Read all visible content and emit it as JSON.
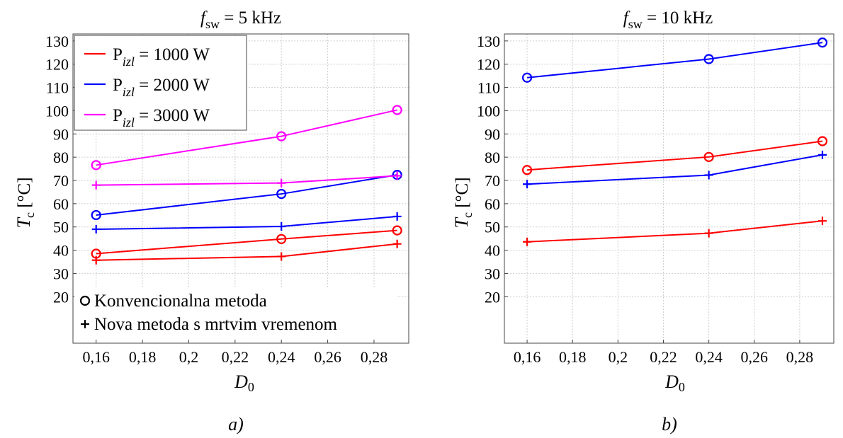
{
  "chart_data": [
    {
      "type": "line",
      "panel_label": "a)",
      "title_main": "f",
      "title_sub": "sw",
      "title_rest": " = 5 kHz",
      "xlabel_main": "D",
      "xlabel_sub": "0",
      "ylabel_main": "T",
      "ylabel_sub": "c",
      "ylabel_rest": " [°C]",
      "xlim": [
        0.15,
        0.295
      ],
      "ylim": [
        0,
        133
      ],
      "xticks": [
        0.16,
        0.18,
        0.2,
        0.22,
        0.24,
        0.26,
        0.28
      ],
      "xtick_labels": [
        "0,16",
        "0,18",
        "0,2",
        "0,22",
        "0,24",
        "0,26",
        "0,28"
      ],
      "yticks": [
        20,
        30,
        40,
        50,
        60,
        70,
        80,
        90,
        100,
        110,
        120,
        130
      ],
      "ytick_labels": [
        "20",
        "30",
        "40",
        "50",
        "60",
        "70",
        "80",
        "90",
        "100",
        "110",
        "120",
        "130"
      ],
      "grid": true,
      "legend_position": "top-left",
      "legend": [
        {
          "main": "P",
          "sub": "izl",
          "rest": " = 1000 W",
          "color": "#ff0000"
        },
        {
          "main": "P",
          "sub": "izl",
          "rest": " = 2000 W",
          "color": "#0000ff"
        },
        {
          "main": "P",
          "sub": "izl",
          "rest": " = 3000 W",
          "color": "#ff00ff"
        }
      ],
      "marker_legend_position": "bottom-left",
      "marker_legend": [
        {
          "marker": "circle",
          "label": "Konvencionalna metoda"
        },
        {
          "marker": "plus",
          "label": "Nova metoda s mrtvim vremenom"
        }
      ],
      "series": [
        {
          "color": "#ff0000",
          "marker": "circle",
          "x": [
            0.16,
            0.24,
            0.29
          ],
          "y": [
            38.5,
            44.8,
            48.5
          ]
        },
        {
          "color": "#ff0000",
          "marker": "plus",
          "x": [
            0.16,
            0.24,
            0.29
          ],
          "y": [
            35.7,
            37.3,
            42.7
          ]
        },
        {
          "color": "#0000ff",
          "marker": "circle",
          "x": [
            0.16,
            0.24,
            0.29
          ],
          "y": [
            55.1,
            64.2,
            72.4
          ]
        },
        {
          "color": "#0000ff",
          "marker": "plus",
          "x": [
            0.16,
            0.24,
            0.29
          ],
          "y": [
            49.0,
            50.2,
            54.5
          ]
        },
        {
          "color": "#ff00ff",
          "marker": "circle",
          "x": [
            0.16,
            0.24,
            0.29
          ],
          "y": [
            76.6,
            89.0,
            100.3
          ]
        },
        {
          "color": "#ff00ff",
          "marker": "plus",
          "x": [
            0.16,
            0.24,
            0.29
          ],
          "y": [
            68.0,
            68.9,
            72.0
          ]
        }
      ]
    },
    {
      "type": "line",
      "panel_label": "b)",
      "title_main": "f",
      "title_sub": "sw",
      "title_rest": " = 10 kHz",
      "xlabel_main": "D",
      "xlabel_sub": "0",
      "ylabel_main": "T",
      "ylabel_sub": "c",
      "ylabel_rest": " [°C]",
      "xlim": [
        0.15,
        0.295
      ],
      "ylim": [
        0,
        133
      ],
      "xticks": [
        0.16,
        0.18,
        0.2,
        0.22,
        0.24,
        0.26,
        0.28
      ],
      "xtick_labels": [
        "0,16",
        "0,18",
        "0,2",
        "0,22",
        "0,24",
        "0,26",
        "0,28"
      ],
      "yticks": [
        20,
        30,
        40,
        50,
        60,
        70,
        80,
        90,
        100,
        110,
        120,
        130
      ],
      "ytick_labels": [
        "20",
        "30",
        "40",
        "50",
        "60",
        "70",
        "80",
        "90",
        "100",
        "110",
        "120",
        "130"
      ],
      "grid": true,
      "series": [
        {
          "color": "#0000ff",
          "marker": "circle",
          "x": [
            0.16,
            0.24,
            0.29
          ],
          "y": [
            114.2,
            122.2,
            129.3
          ]
        },
        {
          "color": "#ff0000",
          "marker": "circle",
          "x": [
            0.16,
            0.24,
            0.29
          ],
          "y": [
            74.5,
            80.1,
            86.9
          ]
        },
        {
          "color": "#0000ff",
          "marker": "plus",
          "x": [
            0.16,
            0.24,
            0.29
          ],
          "y": [
            68.4,
            72.3,
            81.0
          ]
        },
        {
          "color": "#ff0000",
          "marker": "plus",
          "x": [
            0.16,
            0.24,
            0.29
          ],
          "y": [
            43.6,
            47.3,
            52.6
          ]
        }
      ]
    }
  ]
}
